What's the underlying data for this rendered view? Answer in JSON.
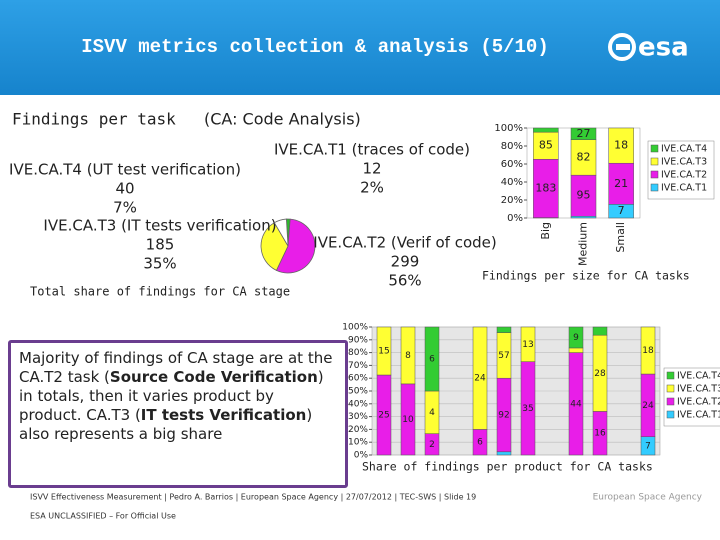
{
  "header": {
    "title": "ISVV metrics collection & analysis (5/10)",
    "logo": "esa"
  },
  "section": {
    "label": "Findings per task",
    "note": "(CA: Code Analysis)"
  },
  "chart_data": [
    {
      "type": "pie",
      "caption": "Total share of findings for CA stage",
      "categories": [
        "IVE.CA.T1 (traces of code)",
        "IVE.CA.T2 (Verif of code)",
        "IVE.CA.T3 (IT tests verification)",
        "IVE.CA.T4 (UT test verification)"
      ],
      "values": [
        12,
        299,
        185,
        40
      ],
      "value_labels": [
        "2%",
        "56%",
        "35%",
        "7%"
      ],
      "colors": [
        "#2eb82e",
        "#e81ee8",
        "#ffff33",
        "#ffffff"
      ]
    },
    {
      "type": "stacked100",
      "caption": "Findings per size for CA tasks",
      "categories": [
        "Big",
        "Medium",
        "Small"
      ],
      "series": [
        {
          "name": "IVE.CA.T4",
          "color": "#33cc33",
          "values": [
            13,
            27,
            0
          ]
        },
        {
          "name": "IVE.CA.T3",
          "color": "#ffff33",
          "values": [
            85,
            82,
            18
          ]
        },
        {
          "name": "IVE.CA.T2",
          "color": "#e81ee8",
          "values": [
            183,
            95,
            21
          ]
        },
        {
          "name": "IVE.CA.T1",
          "color": "#33ccff",
          "values": [
            1,
            4,
            7
          ]
        }
      ],
      "ylim": [
        0,
        100
      ],
      "yticks": [
        {
          "value": 0,
          "label": "0%"
        },
        {
          "value": 20,
          "label": "20%"
        },
        {
          "value": 40,
          "label": "40%"
        },
        {
          "value": 60,
          "label": "60%"
        },
        {
          "value": 80,
          "label": "80%"
        },
        {
          "value": 100,
          "label": "100%"
        }
      ],
      "grid": false
    },
    {
      "type": "stacked100",
      "caption": "Share of findings per product for CA tasks",
      "categories": [
        null,
        null,
        null,
        null,
        null,
        null,
        null,
        null,
        null,
        null,
        null,
        null
      ],
      "series": [
        {
          "name": "IVE.CA.T4",
          "color": "#33cc33",
          "values": [
            0,
            0,
            6,
            0,
            0,
            7,
            0,
            0,
            9,
            3,
            0,
            0
          ]
        },
        {
          "name": "IVE.CA.T3",
          "color": "#ffff33",
          "values": [
            15,
            8,
            4,
            0,
            24,
            57,
            13,
            0,
            2,
            28,
            0,
            18
          ]
        },
        {
          "name": "IVE.CA.T2",
          "color": "#e81ee8",
          "values": [
            25,
            10,
            2,
            0,
            6,
            92,
            35,
            0,
            44,
            16,
            0,
            24
          ]
        },
        {
          "name": "IVE.CA.T1",
          "color": "#33ccff",
          "values": [
            0,
            0,
            0,
            0,
            0,
            4,
            0,
            0,
            0,
            0,
            0,
            7
          ]
        }
      ],
      "ylim": [
        0,
        100
      ],
      "yticks": [
        {
          "value": 0,
          "label": "0%"
        },
        {
          "value": 10,
          "label": "10%"
        },
        {
          "value": 20,
          "label": "20%"
        },
        {
          "value": 30,
          "label": "30%"
        },
        {
          "value": 40,
          "label": "40%"
        },
        {
          "value": 50,
          "label": "50%"
        },
        {
          "value": 60,
          "label": "60%"
        },
        {
          "value": 70,
          "label": "70%"
        },
        {
          "value": 80,
          "label": "80%"
        },
        {
          "value": 90,
          "label": "90%"
        },
        {
          "value": 100,
          "label": "100%"
        }
      ],
      "grid": true
    }
  ],
  "text_box": {
    "parts": [
      "Majority of findings of CA stage are at the CA.T2 task (",
      "Source Code Verification",
      ") in totals, then it varies product by product. CA.T3 (",
      "IT tests Verification",
      ") also represents a big share"
    ],
    "bold": [
      false,
      true,
      false,
      true,
      false
    ]
  },
  "footer": {
    "line": "ISVV Effectiveness Measurement | Pedro A. Barrios | European Space Agency | 27/07/2012 | TEC-SWS | Slide 19",
    "classification": "ESA UNCLASSIFIED – For Official Use",
    "org": "European Space Agency"
  }
}
